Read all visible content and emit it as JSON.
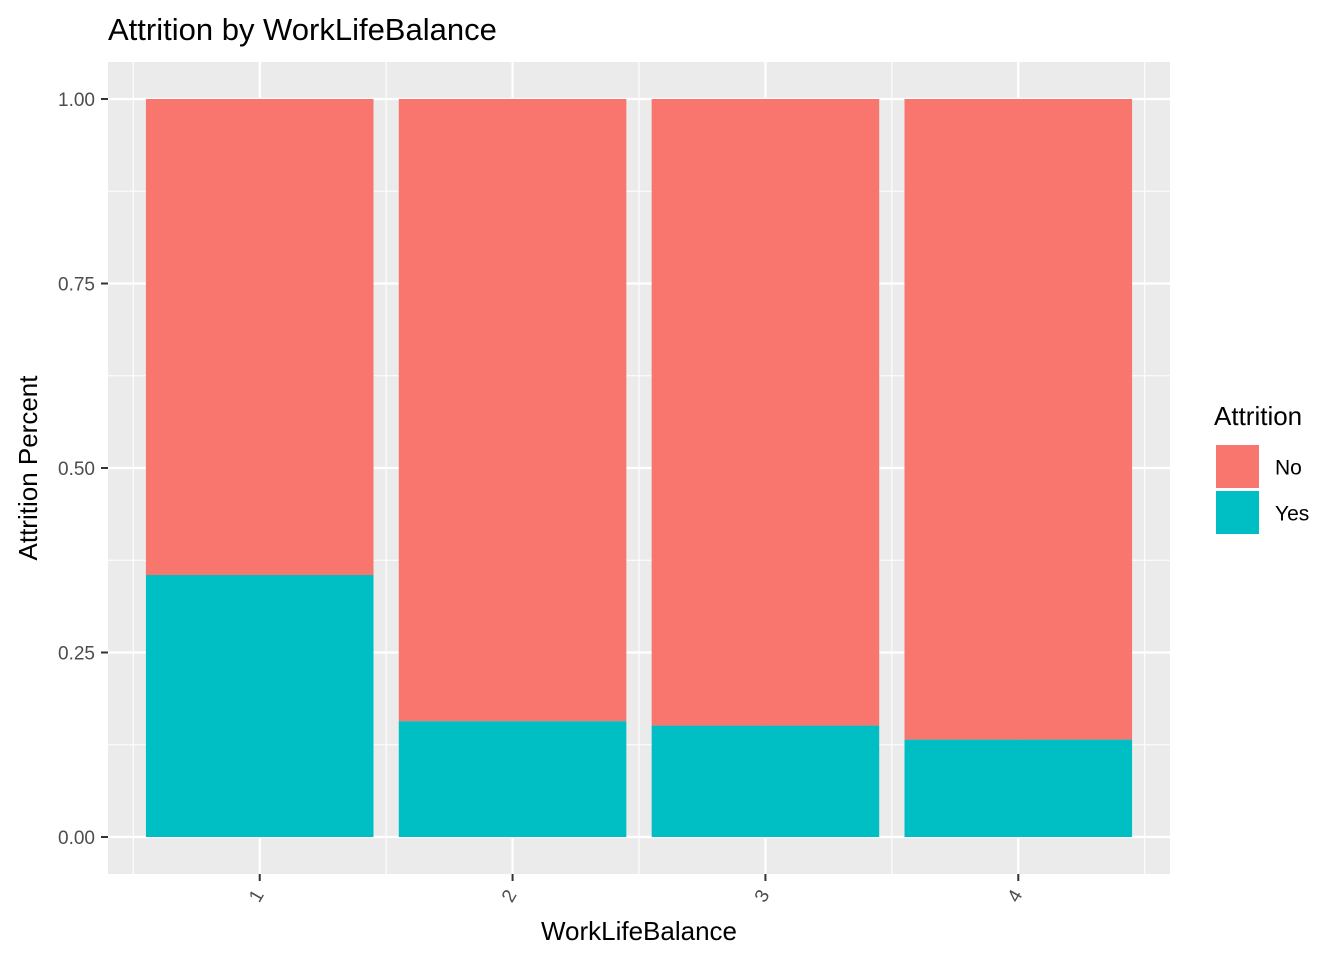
{
  "chart_data": {
    "type": "bar",
    "stacked": true,
    "title": "Attrition by WorkLifeBalance",
    "xlabel": "WorkLifeBalance",
    "ylabel": "Attrition Percent",
    "categories": [
      "1",
      "2",
      "3",
      "4"
    ],
    "series": [
      {
        "name": "No",
        "color": "#F8766D",
        "values": [
          0.645,
          0.843,
          0.849,
          0.868
        ]
      },
      {
        "name": "Yes",
        "color": "#00BFC4",
        "values": [
          0.355,
          0.157,
          0.151,
          0.132
        ]
      }
    ],
    "ylim": [
      -0.05,
      1.05
    ],
    "yticks": [
      {
        "value": 0.0,
        "label": "0.00"
      },
      {
        "value": 0.25,
        "label": "0.25"
      },
      {
        "value": 0.5,
        "label": "0.50"
      },
      {
        "value": 0.75,
        "label": "0.75"
      },
      {
        "value": 1.0,
        "label": "1.00"
      }
    ],
    "grid": true,
    "x_tick_rotation": "angled",
    "legend": {
      "title": "Attrition",
      "position": "right",
      "items": [
        "No",
        "Yes"
      ]
    }
  }
}
